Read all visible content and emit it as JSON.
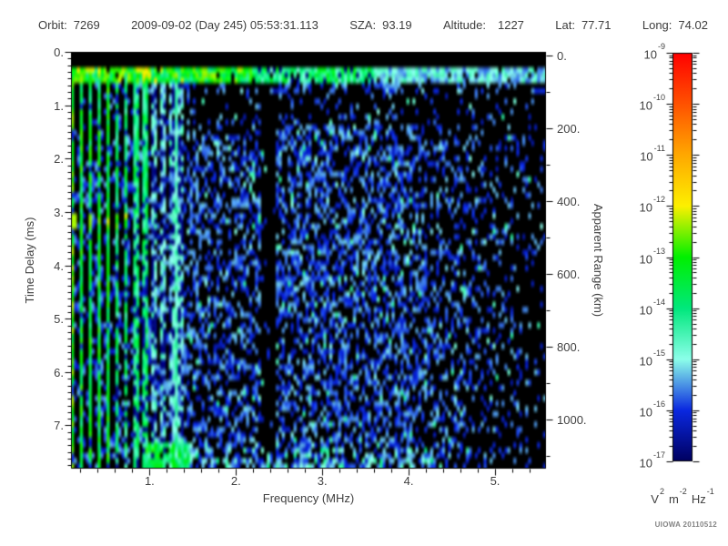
{
  "header": {
    "orbit_label": "Orbit:",
    "orbit_value": "7269",
    "datetime": "2009-09-02 (Day 245) 05:53:31.113",
    "sza_label": "SZA:",
    "sza_value": "93.19",
    "altitude_label": "Altitude:",
    "altitude_value": "1227",
    "lat_label": "Lat:",
    "lat_value": "77.71",
    "long_label": "Long:",
    "long_value": "74.02"
  },
  "chart_data": {
    "type": "heatmap",
    "description": "Radar sounder ionogram: spectral density vs frequency and time delay",
    "xlabel": "Frequency (MHz)",
    "ylabel_left": "Time Delay (ms)",
    "ylabel_right": "Apparent Range (km)",
    "x": {
      "min": 0.09,
      "max": 5.59,
      "ticks": [
        1,
        2,
        3,
        4,
        5
      ],
      "tick_labels": [
        "1.",
        "2.",
        "3.",
        "4.",
        "5."
      ],
      "minor_step": 0.2
    },
    "y": {
      "min": 0,
      "max": 7.81,
      "ticks": [
        0,
        1,
        2,
        3,
        4,
        5,
        6,
        7
      ],
      "tick_labels": [
        "0.",
        "1.",
        "2.",
        "3.",
        "4.",
        "5.",
        "6.",
        "7."
      ],
      "minor_step": 0.125
    },
    "y_right": {
      "ticks": [
        0,
        200,
        400,
        600,
        800,
        1000
      ],
      "tick_labels": [
        "0.",
        "200.",
        "400.",
        "600.",
        "800.",
        "1000."
      ],
      "minor_step": 100,
      "t0_ms": 0.068,
      "km_per_ms": 146.6
    },
    "colorbar": {
      "scale": "log",
      "base": "10",
      "tick_exponents": [
        "-9",
        "-10",
        "-11",
        "-12",
        "-13",
        "-14",
        "-15",
        "-16",
        "-17"
      ],
      "units": [
        [
          "V",
          "2"
        ],
        [
          "m",
          "-2"
        ],
        [
          "Hz",
          "-1"
        ]
      ],
      "gradient": [
        {
          "pos": 0.0,
          "color": "#ff0000"
        },
        {
          "pos": 0.125,
          "color": "#ff5200"
        },
        {
          "pos": 0.25,
          "color": "#ffa800"
        },
        {
          "pos": 0.375,
          "color": "#fdf000"
        },
        {
          "pos": 0.5,
          "color": "#00f000"
        },
        {
          "pos": 0.625,
          "color": "#00e87c"
        },
        {
          "pos": 0.75,
          "color": "#8cffea"
        },
        {
          "pos": 0.875,
          "color": "#0a28e0"
        },
        {
          "pos": 1.0,
          "color": "#000060"
        }
      ]
    },
    "spectrogram_features": {
      "background_level": "black, below 1e-17 V2 m-2 Hz-1",
      "electron_plasma_harmonic_spacing_mhz": 0.105,
      "harmonics_extend_to_mhz": 1.42,
      "harmonic_level_exponent": -13.5,
      "persistent_vertical_line_mhz": 1.31,
      "ionospheric_echo_band_delay_ms": [
        0.3,
        0.55
      ],
      "echo_band_level_exponent": -13.8,
      "quiet_lane_mhz": [
        2.3,
        2.47
      ],
      "diffuse_noise_region": {
        "freq_mhz": [
          1.4,
          5.6
        ],
        "delay_ms": [
          1.5,
          7.8
        ],
        "level_exponent": -16
      },
      "noise_fadeout_above_mhz": 4.2,
      "bright_cross_feature_delay_ms": 3.15,
      "bottom_echo_blob": {
        "freq_mhz": [
          0.95,
          1.45
        ],
        "delay_ms": [
          7.3,
          7.8
        ],
        "level_exponent": -14
      },
      "rng_seed": 7269,
      "grid_cols": 160,
      "grid_rows": 80
    }
  },
  "branding": {
    "watermark": "UIOWA 20110512"
  }
}
